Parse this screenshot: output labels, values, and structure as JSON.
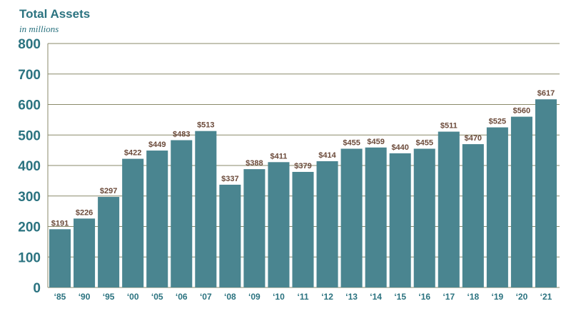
{
  "chart_data": {
    "type": "bar",
    "title": "Total Assets",
    "subtitle": "in millions",
    "categories": [
      "‘85",
      "‘90",
      "‘95",
      "‘00",
      "‘05",
      "‘06",
      "‘07",
      "‘08",
      "‘09",
      "‘10",
      "‘11",
      "‘12",
      "‘13",
      "‘14",
      "‘15",
      "‘16",
      "‘17",
      "‘18",
      "‘19",
      "‘20",
      "‘21"
    ],
    "values": [
      191,
      226,
      297,
      422,
      449,
      483,
      513,
      337,
      388,
      411,
      379,
      414,
      455,
      459,
      440,
      455,
      511,
      470,
      525,
      560,
      617
    ],
    "value_labels": [
      "$191",
      "$226",
      "$297",
      "$422",
      "$449",
      "$483",
      "$513",
      "$337",
      "$388",
      "$411",
      "$379",
      "$414",
      "$455",
      "$459",
      "$440",
      "$455",
      "$511",
      "$470",
      "$525",
      "$560",
      "$617"
    ],
    "y_ticks": [
      0,
      100,
      200,
      300,
      400,
      500,
      600,
      700,
      800
    ],
    "ylim": [
      0,
      800
    ],
    "grid": true,
    "colors": {
      "bar": "#4a8590",
      "axis_text": "#2b7380",
      "label_text": "#6b4a3a",
      "grid": "#8a8a6a"
    }
  }
}
